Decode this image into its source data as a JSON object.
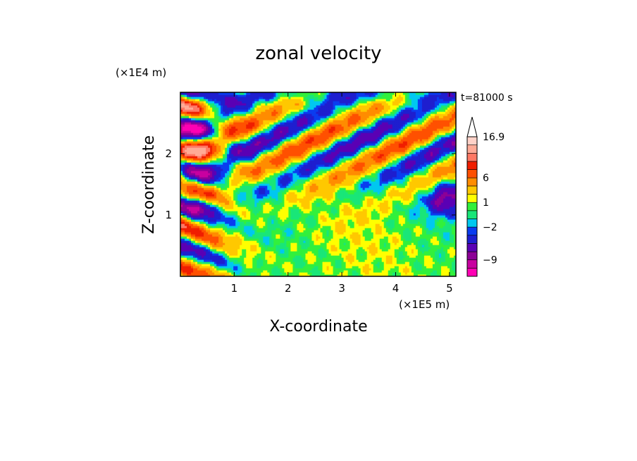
{
  "chart_data": {
    "type": "heatmap",
    "title": "zonal velocity",
    "xlabel": "X-coordinate",
    "ylabel": "Z-coordinate",
    "x_unit": "(×1E5 m)",
    "y_unit": "(×1E4 m)",
    "time_label": "t=81000 s",
    "x_ticks": [
      "1",
      "2",
      "3",
      "4",
      "5"
    ],
    "y_ticks": [
      "1",
      "2"
    ],
    "xlim": [
      0,
      5.12
    ],
    "ylim": [
      0,
      3.0
    ],
    "colorbar": {
      "levels": [
        {
          "lower": -13,
          "upper": -11,
          "color": "#ff00b4"
        },
        {
          "lower": -11,
          "upper": -9,
          "color": "#c800a0"
        },
        {
          "lower": -9,
          "upper": -7,
          "color": "#8c0096"
        },
        {
          "lower": -7,
          "upper": -5,
          "color": "#5a00b4"
        },
        {
          "lower": -5,
          "upper": -3,
          "color": "#1e1ecf"
        },
        {
          "lower": -3,
          "upper": -2,
          "color": "#0a3cf0"
        },
        {
          "lower": -2,
          "upper": -1,
          "color": "#00c8f0"
        },
        {
          "lower": -1,
          "upper": 0,
          "color": "#19e678"
        },
        {
          "lower": 0,
          "upper": 1,
          "color": "#32f03c"
        },
        {
          "lower": 1,
          "upper": 2,
          "color": "#ffff00"
        },
        {
          "lower": 2,
          "upper": 4,
          "color": "#ffc800"
        },
        {
          "lower": 4,
          "upper": 6,
          "color": "#ff8c00"
        },
        {
          "lower": 6,
          "upper": 8,
          "color": "#ff5000"
        },
        {
          "lower": 8,
          "upper": 10,
          "color": "#f01e00"
        },
        {
          "lower": 10,
          "upper": 12,
          "color": "#ff7864"
        },
        {
          "lower": 12,
          "upper": 14,
          "color": "#ffaa96"
        },
        {
          "lower": 14,
          "upper": 16.9,
          "color": "#ffd2c8"
        }
      ],
      "max_arrow": true,
      "tick_labels": [
        {
          "value": 16.9,
          "label": "16.9"
        },
        {
          "value": 6,
          "label": "6"
        },
        {
          "value": 1,
          "label": "1"
        },
        {
          "value": -2,
          "label": "−2"
        },
        {
          "value": -9,
          "label": "−9"
        }
      ]
    }
  }
}
